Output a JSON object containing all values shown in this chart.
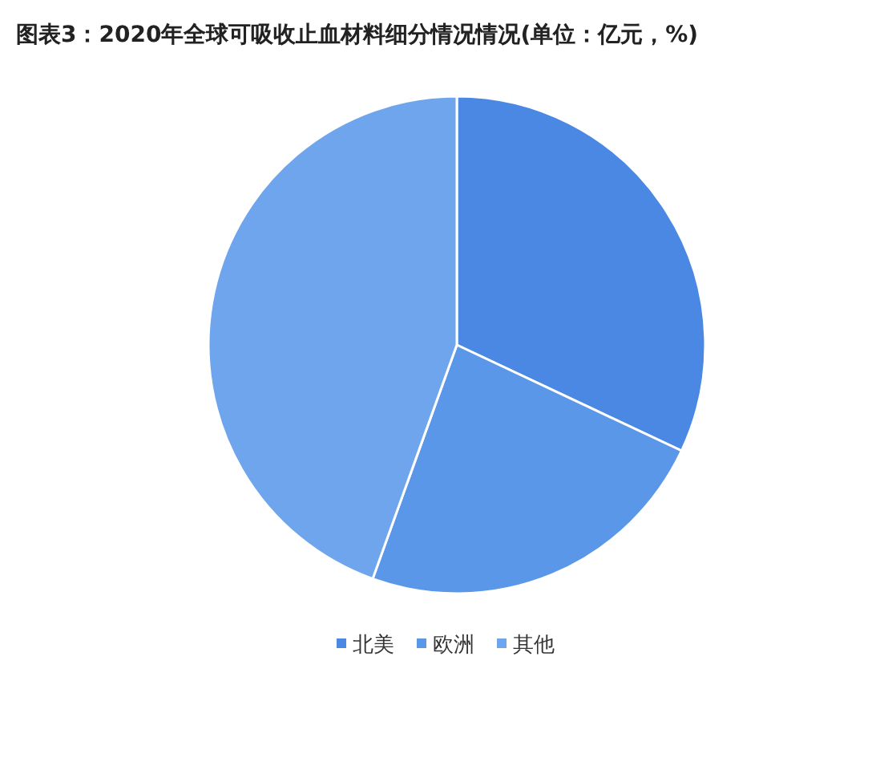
{
  "chart_data": {
    "type": "pie",
    "title": "图表3：2020年全球可吸收止血材料细分情况情况(单位：亿元，%)",
    "categories": [
      "北美",
      "欧洲",
      "其他"
    ],
    "values": [
      32,
      23.5,
      44.5
    ],
    "colors": [
      "#4a88e4",
      "#5b97e8",
      "#6fa5ec"
    ],
    "legend": "bottom"
  }
}
